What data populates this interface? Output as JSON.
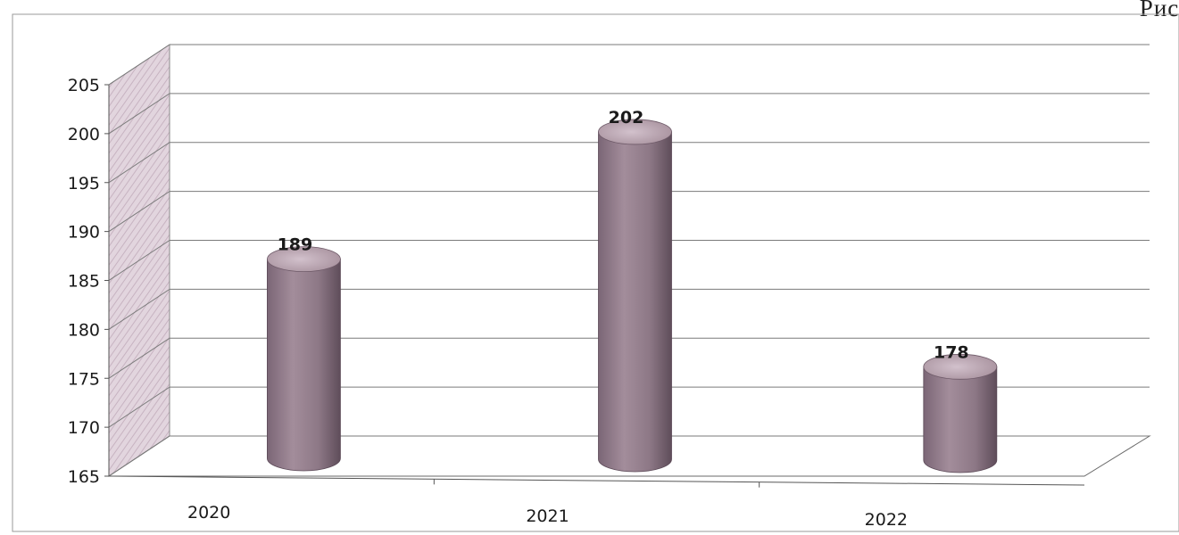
{
  "figure": {
    "caption": "Рис."
  },
  "chart_data": {
    "type": "bar",
    "style": "3d-cylinder",
    "categories": [
      "2020",
      "2021",
      "2022"
    ],
    "values": [
      189,
      202,
      178
    ],
    "title": "",
    "xlabel": "",
    "ylabel": "",
    "ylim": [
      165,
      205
    ],
    "yticks": [
      165,
      170,
      175,
      180,
      185,
      190,
      195,
      200,
      205
    ],
    "grid": true,
    "legend": "none",
    "data_labels": true,
    "colors": {
      "bar": "#9b8593",
      "bar_dark": "#6e5a68",
      "bar_top": "#c9b6c2",
      "wall": "#d9c9d3",
      "grid": "#7a7a7a",
      "frame": "#9a9a9a"
    }
  }
}
